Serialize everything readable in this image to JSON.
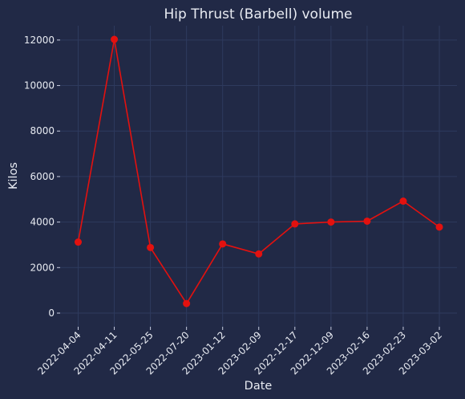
{
  "chart_data": {
    "type": "line",
    "title": "Hip Thrust (Barbell) volume",
    "xlabel": "Date",
    "ylabel": "Kilos",
    "categories": [
      "2022-04-04",
      "2022-04-11",
      "2022-05-25",
      "2022-07-20",
      "2023-01-12",
      "2023-02-09",
      "2022-12-17",
      "2022-12-09",
      "2023-02-16",
      "2023-02-23",
      "2023-03-02"
    ],
    "series": [
      {
        "values": [
          3120,
          12030,
          2880,
          420,
          3040,
          2600,
          3920,
          4000,
          4040,
          4920,
          3780
        ]
      }
    ],
    "yticks": [
      0,
      2000,
      4000,
      6000,
      8000,
      10000,
      12000
    ],
    "ylim": [
      -600,
      12630
    ],
    "grid": true,
    "line_color": "#e3110f",
    "background_color": "#212946"
  }
}
